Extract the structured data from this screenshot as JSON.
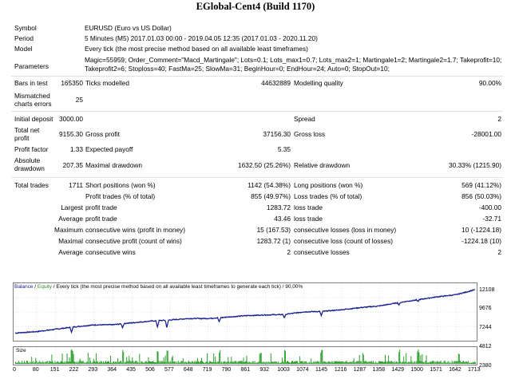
{
  "title": "EGlobal-Cent4 (Build 1170)",
  "report": {
    "symbol_label": "Symbol",
    "symbol_value": "EURUSD (Euro vs US Dollar)",
    "period_label": "Period",
    "period_value": "5 Minutes (M5) 2017.01.03 00:00 - 2019.04.05 12:35 (2017.01.03 - 2020.11.20)",
    "model_label": "Model",
    "model_value": "Every tick (the most precise method based on all available least timeframes)",
    "parameters_label": "Parameters",
    "parameters_line1": "Magic=55959; Order_Comment=\"Macd_Martingale\"; Lots=0.1; Lots_max1=0.7; Lots_max2=1; Martingale1=2; Martingale2=1.7; Takeprofit=10;",
    "parameters_line2": "Takeprofit2=6; Stoploss=40; FastMa=25; SlowMa=31; BeginHour=0; EndHour=24; Auto=0; StopOut=10;",
    "bars_label": "Bars in test",
    "bars_value": "165350",
    "ticks_label": "Ticks modelled",
    "ticks_value": "44632889",
    "quality_label": "Modelling quality",
    "quality_value": "90.00%",
    "mismatch_label": "Mismatched charts errors",
    "mismatch_value": "25",
    "deposit_label": "Initial deposit",
    "deposit_value": "3000.00",
    "spread_label": "Spread",
    "spread_value": "2",
    "net_label": "Total net profit",
    "net_value": "9155.30",
    "gross_profit_label": "Gross profit",
    "gross_profit_value": "37156.30",
    "gross_loss_label": "Gross loss",
    "gross_loss_value": "-28001.00",
    "pf_label": "Profit factor",
    "pf_value": "1.33",
    "payoff_label": "Expected payoff",
    "payoff_value": "5.35",
    "abs_dd_label": "Absolute drawdown",
    "abs_dd_value": "207.35",
    "max_dd_label": "Maximal drawdown",
    "max_dd_value": "1632.50 (25.26%)",
    "rel_dd_label": "Relative drawdown",
    "rel_dd_value": "30.33% (1215.90)",
    "trades_label": "Total trades",
    "trades_value": "1711",
    "short_label": "Short positions (won %)",
    "short_value": "1142 (54.38%)",
    "long_label": "Long positions (won %)",
    "long_value": "569 (41.12%)",
    "ptrades_label": "Profit trades (% of total)",
    "ptrades_value": "855 (49.97%)",
    "ltrades_label": "Loss trades (% of total)",
    "ltrades_value": "856 (50.03%)",
    "largest_label": "Largest",
    "largest_profit_label": "profit trade",
    "largest_profit_value": "1283.72",
    "largest_loss_label": "loss trade",
    "largest_loss_value": "-400.00",
    "average_label": "Average",
    "avg_profit_label": "profit trade",
    "avg_profit_value": "43.46",
    "avg_loss_label": "loss trade",
    "avg_loss_value": "-32.71",
    "maximum_label": "Maximum",
    "max_cw_label": "consecutive wins (profit in money)",
    "max_cw_value": "15 (167.53)",
    "max_cl_label": "consecutive losses (loss in money)",
    "max_cl_value": "10 (-1224.18)",
    "maximal_label": "Maximal",
    "mxl_cp_label": "consecutive profit (count of wins)",
    "mxl_cp_value": "1283.72 (1)",
    "mxl_cl_label": "consecutive loss (count of losses)",
    "mxl_cl_value": "-1224.18 (10)",
    "avg2_label": "Average",
    "avg_cw_label": "consecutive wins",
    "avg_cw_value": "2",
    "avg_cl_label": "consecutive losses",
    "avg_cl_value": "2"
  },
  "chart": {
    "legend_balance": "Balance",
    "legend_slash": " / ",
    "legend_equity": "Equity",
    "legend_rest": " / Every tick (the most precise method based on all available least timeframes to generate each tick) / 90.00%",
    "size_label": "Size",
    "colors": {
      "balance": "#1a1a99",
      "equity": "#2e8b2e",
      "size": "#2e9e2e"
    }
  },
  "chart_data": {
    "type": "line",
    "series": [
      {
        "name": "Balance"
      },
      {
        "name": "Equity"
      }
    ],
    "y_ticks": [
      "12108",
      "9676",
      "7244",
      "4812",
      "2380"
    ],
    "x_ticks": [
      "0",
      "80",
      "151",
      "222",
      "293",
      "364",
      "435",
      "506",
      "577",
      "648",
      "719",
      "790",
      "861",
      "932",
      "1003",
      "1074",
      "1145",
      "1216",
      "1287",
      "1358",
      "1429",
      "1500",
      "1571",
      "1642",
      "1713"
    ],
    "ylim": [
      2380,
      12108
    ],
    "xlim": [
      0,
      1713
    ],
    "balance_curve": [
      [
        0,
        3000
      ],
      [
        80,
        3300
      ],
      [
        151,
        3800
      ],
      [
        222,
        4300
      ],
      [
        293,
        4700
      ],
      [
        364,
        4750
      ],
      [
        435,
        5150
      ],
      [
        506,
        5500
      ],
      [
        577,
        5750
      ],
      [
        648,
        6050
      ],
      [
        719,
        6050
      ],
      [
        790,
        6350
      ],
      [
        861,
        6650
      ],
      [
        932,
        6800
      ],
      [
        1003,
        6900
      ],
      [
        1074,
        7450
      ],
      [
        1145,
        7550
      ],
      [
        1216,
        7900
      ],
      [
        1287,
        8350
      ],
      [
        1358,
        8700
      ],
      [
        1429,
        9400
      ],
      [
        1500,
        10000
      ],
      [
        1571,
        10600
      ],
      [
        1642,
        11050
      ],
      [
        1713,
        12108
      ]
    ],
    "drawdowns": [
      [
        210,
        -1000
      ],
      [
        400,
        -800
      ],
      [
        530,
        -1300
      ],
      [
        565,
        -1600
      ],
      [
        760,
        -900
      ],
      [
        1003,
        -700
      ],
      [
        1140,
        -900
      ],
      [
        1430,
        -500
      ],
      [
        1500,
        -400
      ]
    ]
  }
}
